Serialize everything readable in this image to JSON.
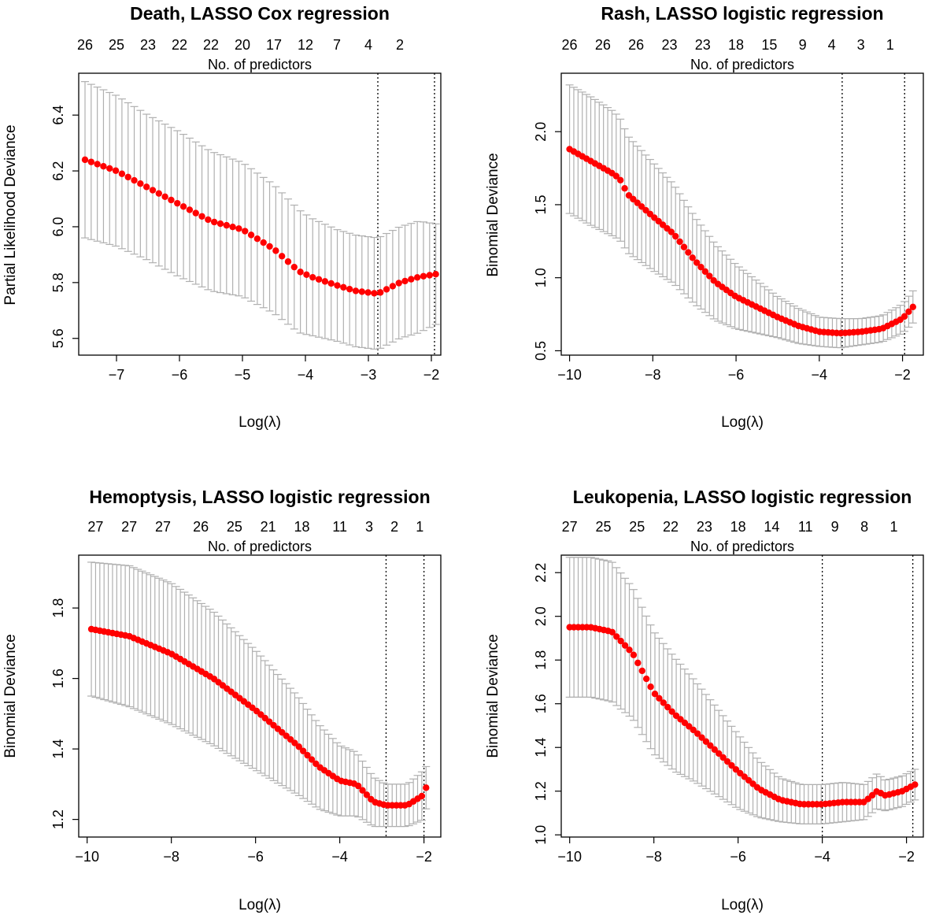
{
  "chart_data": [
    {
      "type": "scatter",
      "title": "Death, LASSO Cox regression",
      "xlabel": "Log(λ)",
      "ylabel": "Partial Likelihood Deviance",
      "top_axis_label": "No. of predictors",
      "xlim": [
        -7.6,
        -1.85
      ],
      "ylim": [
        5.54,
        6.55
      ],
      "xticks": [
        -7,
        -6,
        -5,
        -4,
        -3,
        -2
      ],
      "yticks": [
        5.6,
        5.8,
        6.0,
        6.2,
        6.4
      ],
      "top_ticks": [
        {
          "x": -7.5,
          "label": "26"
        },
        {
          "x": -7.0,
          "label": "25"
        },
        {
          "x": -6.5,
          "label": "23"
        },
        {
          "x": -6.0,
          "label": "22"
        },
        {
          "x": -5.5,
          "label": "22"
        },
        {
          "x": -5.0,
          "label": "20"
        },
        {
          "x": -4.5,
          "label": "17"
        },
        {
          "x": -4.0,
          "label": "12"
        },
        {
          "x": -3.5,
          "label": "7"
        },
        {
          "x": -3.0,
          "label": "4"
        },
        {
          "x": -2.5,
          "label": "2"
        }
      ],
      "vlines": [
        -2.85,
        -1.95
      ],
      "cv_curve": {
        "n_points": 58,
        "x_range": [
          -7.5,
          -1.93
        ],
        "knots": [
          {
            "x": -7.5,
            "y": 6.24,
            "se": 0.28
          },
          {
            "x": -7.0,
            "y": 6.2,
            "se": 0.27
          },
          {
            "x": -6.5,
            "y": 6.14,
            "se": 0.26
          },
          {
            "x": -6.0,
            "y": 6.08,
            "se": 0.26
          },
          {
            "x": -5.5,
            "y": 6.02,
            "se": 0.25
          },
          {
            "x": -5.0,
            "y": 5.99,
            "se": 0.24
          },
          {
            "x": -4.5,
            "y": 5.92,
            "se": 0.23
          },
          {
            "x": -4.1,
            "y": 5.84,
            "se": 0.22
          },
          {
            "x": -3.9,
            "y": 5.82,
            "se": 0.21
          },
          {
            "x": -3.5,
            "y": 5.79,
            "se": 0.2
          },
          {
            "x": -3.2,
            "y": 5.77,
            "se": 0.2
          },
          {
            "x": -2.85,
            "y": 5.76,
            "se": 0.2
          },
          {
            "x": -2.5,
            "y": 5.8,
            "se": 0.2
          },
          {
            "x": -2.2,
            "y": 5.82,
            "se": 0.2
          },
          {
            "x": -1.93,
            "y": 5.83,
            "se": 0.18
          }
        ]
      }
    },
    {
      "type": "scatter",
      "title": "Rash, LASSO logistic regression",
      "xlabel": "Log(λ)",
      "ylabel": "Binomial Deviance",
      "top_axis_label": "No. of predictors",
      "xlim": [
        -10.2,
        -1.5
      ],
      "ylim": [
        0.47,
        2.4
      ],
      "xticks": [
        -10,
        -8,
        -6,
        -4,
        -2
      ],
      "yticks": [
        0.5,
        1.0,
        1.5,
        2.0
      ],
      "top_ticks": [
        {
          "x": -10.0,
          "label": "26"
        },
        {
          "x": -9.2,
          "label": "26"
        },
        {
          "x": -8.4,
          "label": "26"
        },
        {
          "x": -7.6,
          "label": "23"
        },
        {
          "x": -6.8,
          "label": "23"
        },
        {
          "x": -6.0,
          "label": "18"
        },
        {
          "x": -5.2,
          "label": "15"
        },
        {
          "x": -4.4,
          "label": "9"
        },
        {
          "x": -3.7,
          "label": "4"
        },
        {
          "x": -3.0,
          "label": "3"
        },
        {
          "x": -2.3,
          "label": "1"
        }
      ],
      "vlines": [
        -3.45,
        -1.95
      ],
      "cv_curve": {
        "n_points": 82,
        "x_range": [
          -10.0,
          -1.75
        ],
        "knots": [
          {
            "x": -10.0,
            "y": 1.88,
            "se": 0.44
          },
          {
            "x": -9.5,
            "y": 1.8,
            "se": 0.44
          },
          {
            "x": -9.0,
            "y": 1.72,
            "se": 0.43
          },
          {
            "x": -8.8,
            "y": 1.68,
            "se": 0.42
          },
          {
            "x": -8.6,
            "y": 1.57,
            "se": 0.4
          },
          {
            "x": -8.0,
            "y": 1.42,
            "se": 0.37
          },
          {
            "x": -7.5,
            "y": 1.3,
            "se": 0.34
          },
          {
            "x": -7.0,
            "y": 1.12,
            "se": 0.3
          },
          {
            "x": -6.5,
            "y": 0.97,
            "se": 0.26
          },
          {
            "x": -6.0,
            "y": 0.87,
            "se": 0.22
          },
          {
            "x": -5.5,
            "y": 0.8,
            "se": 0.18
          },
          {
            "x": -5.0,
            "y": 0.73,
            "se": 0.14
          },
          {
            "x": -4.5,
            "y": 0.67,
            "se": 0.12
          },
          {
            "x": -4.0,
            "y": 0.63,
            "se": 0.1
          },
          {
            "x": -3.5,
            "y": 0.62,
            "se": 0.1
          },
          {
            "x": -3.0,
            "y": 0.63,
            "se": 0.09
          },
          {
            "x": -2.5,
            "y": 0.65,
            "se": 0.09
          },
          {
            "x": -2.0,
            "y": 0.72,
            "se": 0.1
          },
          {
            "x": -1.75,
            "y": 0.8,
            "se": 0.11
          }
        ]
      }
    },
    {
      "type": "scatter",
      "title": "Hemoptysis, LASSO logistic regression",
      "xlabel": "Log(λ)",
      "ylabel": "Binomial Deviance",
      "top_axis_label": "No. of predictors",
      "xlim": [
        -10.2,
        -1.6
      ],
      "ylim": [
        1.15,
        1.95
      ],
      "xticks": [
        -10,
        -8,
        -6,
        -4,
        -2
      ],
      "yticks": [
        1.2,
        1.4,
        1.6,
        1.8
      ],
      "top_ticks": [
        {
          "x": -9.8,
          "label": "27"
        },
        {
          "x": -9.0,
          "label": "27"
        },
        {
          "x": -8.2,
          "label": "27"
        },
        {
          "x": -7.3,
          "label": "26"
        },
        {
          "x": -6.5,
          "label": "25"
        },
        {
          "x": -5.7,
          "label": "21"
        },
        {
          "x": -4.9,
          "label": "18"
        },
        {
          "x": -4.0,
          "label": "11"
        },
        {
          "x": -3.3,
          "label": "3"
        },
        {
          "x": -2.7,
          "label": "2"
        },
        {
          "x": -2.1,
          "label": "1"
        }
      ],
      "vlines": [
        -2.9,
        -2.0
      ],
      "cv_curve": {
        "n_points": 80,
        "x_range": [
          -9.9,
          -1.95
        ],
        "knots": [
          {
            "x": -9.9,
            "y": 1.74,
            "se": 0.19
          },
          {
            "x": -9.0,
            "y": 1.72,
            "se": 0.2
          },
          {
            "x": -8.0,
            "y": 1.67,
            "se": 0.2
          },
          {
            "x": -7.0,
            "y": 1.6,
            "se": 0.19
          },
          {
            "x": -6.0,
            "y": 1.51,
            "se": 0.17
          },
          {
            "x": -5.0,
            "y": 1.41,
            "se": 0.14
          },
          {
            "x": -4.5,
            "y": 1.35,
            "se": 0.12
          },
          {
            "x": -4.0,
            "y": 1.31,
            "se": 0.1
          },
          {
            "x": -3.6,
            "y": 1.3,
            "se": 0.09
          },
          {
            "x": -3.2,
            "y": 1.25,
            "se": 0.07
          },
          {
            "x": -2.9,
            "y": 1.24,
            "se": 0.06
          },
          {
            "x": -2.4,
            "y": 1.24,
            "se": 0.06
          },
          {
            "x": -2.0,
            "y": 1.27,
            "se": 0.07
          },
          {
            "x": -1.95,
            "y": 1.29,
            "se": 0.06
          }
        ]
      }
    },
    {
      "type": "scatter",
      "title": "Leukopenia, LASSO logistic regression",
      "xlabel": "Log(λ)",
      "ylabel": "Binomial Deviance",
      "top_axis_label": "No. of predictors",
      "xlim": [
        -10.2,
        -1.6
      ],
      "ylim": [
        0.99,
        2.28
      ],
      "xticks": [
        -10,
        -8,
        -6,
        -4,
        -2
      ],
      "yticks": [
        1.0,
        1.2,
        1.4,
        1.6,
        1.8,
        2.0,
        2.2
      ],
      "top_ticks": [
        {
          "x": -10.0,
          "label": "27"
        },
        {
          "x": -9.2,
          "label": "25"
        },
        {
          "x": -8.4,
          "label": "25"
        },
        {
          "x": -7.6,
          "label": "22"
        },
        {
          "x": -6.8,
          "label": "23"
        },
        {
          "x": -6.0,
          "label": "18"
        },
        {
          "x": -5.2,
          "label": "14"
        },
        {
          "x": -4.4,
          "label": "11"
        },
        {
          "x": -3.7,
          "label": "9"
        },
        {
          "x": -3.0,
          "label": "8"
        },
        {
          "x": -2.3,
          "label": "1"
        }
      ],
      "vlines": [
        -4.0,
        -1.85
      ],
      "cv_curve": {
        "n_points": 82,
        "x_range": [
          -10.0,
          -1.8
        ],
        "knots": [
          {
            "x": -10.0,
            "y": 1.95,
            "se": 0.32
          },
          {
            "x": -9.5,
            "y": 1.95,
            "se": 0.32
          },
          {
            "x": -9.0,
            "y": 1.93,
            "se": 0.32
          },
          {
            "x": -8.5,
            "y": 1.83,
            "se": 0.3
          },
          {
            "x": -8.0,
            "y": 1.65,
            "se": 0.28
          },
          {
            "x": -7.5,
            "y": 1.55,
            "se": 0.26
          },
          {
            "x": -7.0,
            "y": 1.47,
            "se": 0.23
          },
          {
            "x": -6.5,
            "y": 1.38,
            "se": 0.2
          },
          {
            "x": -6.0,
            "y": 1.29,
            "se": 0.17
          },
          {
            "x": -5.5,
            "y": 1.21,
            "se": 0.13
          },
          {
            "x": -5.0,
            "y": 1.16,
            "se": 0.1
          },
          {
            "x": -4.5,
            "y": 1.14,
            "se": 0.09
          },
          {
            "x": -4.0,
            "y": 1.14,
            "se": 0.09
          },
          {
            "x": -3.5,
            "y": 1.15,
            "se": 0.09
          },
          {
            "x": -3.0,
            "y": 1.15,
            "se": 0.08
          },
          {
            "x": -2.7,
            "y": 1.2,
            "se": 0.08
          },
          {
            "x": -2.5,
            "y": 1.18,
            "se": 0.07
          },
          {
            "x": -2.1,
            "y": 1.2,
            "se": 0.07
          },
          {
            "x": -1.8,
            "y": 1.23,
            "se": 0.07
          }
        ]
      }
    }
  ],
  "style": {
    "point_color": "#ff0000",
    "errorbar_color": "#b0b0b0",
    "axis_color": "#000000",
    "vline_style": "dotted"
  }
}
